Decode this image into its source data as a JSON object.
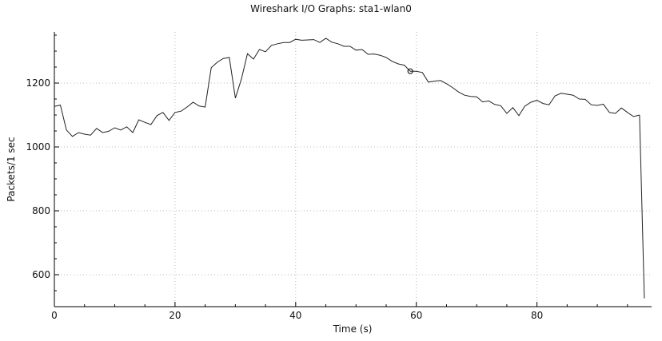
{
  "chart_data": {
    "type": "line",
    "title": "Wireshark I/O Graphs: sta1-wlan0",
    "xlabel": "Time (s)",
    "ylabel": "Packets/1 sec",
    "xlim": [
      0,
      99
    ],
    "ylim": [
      500,
      1360
    ],
    "xticks": [
      0,
      20,
      40,
      60,
      80
    ],
    "yticks": [
      600,
      800,
      1000,
      1200
    ],
    "xticks_minor": [
      5,
      10,
      15,
      25,
      30,
      35,
      45,
      50,
      55,
      65,
      70,
      75,
      85,
      90,
      95
    ],
    "yticks_minor": [
      550,
      650,
      700,
      750,
      850,
      900,
      950,
      1050,
      1100,
      1150,
      1250,
      1300,
      1350
    ],
    "grid": true,
    "x": [
      0,
      1,
      2,
      3,
      4,
      5,
      6,
      7,
      8,
      9,
      10,
      11,
      12,
      13,
      14,
      15,
      16,
      17,
      18,
      19,
      20,
      21,
      22,
      23,
      24,
      25,
      26,
      27,
      28,
      29,
      30,
      31,
      32,
      33,
      34,
      35,
      36,
      37,
      38,
      39,
      40,
      41,
      42,
      43,
      44,
      45,
      46,
      47,
      48,
      49,
      50,
      51,
      52,
      53,
      54,
      55,
      56,
      57,
      58,
      59,
      60,
      61,
      62,
      63,
      64,
      65,
      66,
      67,
      68,
      69,
      70,
      71,
      72,
      73,
      74,
      75,
      76,
      77,
      78,
      79,
      80,
      81,
      82,
      83,
      84,
      85,
      86,
      87,
      88,
      89,
      90,
      91,
      92,
      93,
      94,
      95,
      96,
      97
    ],
    "series": [
      {
        "values": [
          1127,
          1131,
          1053,
          1033,
          1045,
          1040,
          1037,
          1058,
          1045,
          1049,
          1060,
          1053,
          1063,
          1045,
          1085,
          1077,
          1070,
          1098,
          1108,
          1083,
          1108,
          1112,
          1125,
          1140,
          1128,
          1125,
          1248,
          1265,
          1277,
          1280,
          1153,
          1212,
          1292,
          1275,
          1305,
          1298,
          1318,
          1323,
          1327,
          1327,
          1337,
          1334,
          1335,
          1336,
          1327,
          1340,
          1328,
          1323,
          1315,
          1315,
          1303,
          1305,
          1290,
          1291,
          1287,
          1280,
          1268,
          1260,
          1256,
          1237,
          1237,
          1233,
          1203,
          1206,
          1208,
          1198,
          1186,
          1172,
          1162,
          1158,
          1157,
          1141,
          1144,
          1133,
          1129,
          1105,
          1123,
          1098,
          1128,
          1140,
          1146,
          1136,
          1132,
          1160,
          1168,
          1165,
          1162,
          1150,
          1149,
          1132,
          1130,
          1134,
          1108,
          1105,
          1122,
          1108,
          1095,
          1100
        ],
        "final_drop": {
          "x": 97.8,
          "y": 526
        }
      }
    ],
    "marker": {
      "x": 59,
      "y": 1237
    }
  }
}
